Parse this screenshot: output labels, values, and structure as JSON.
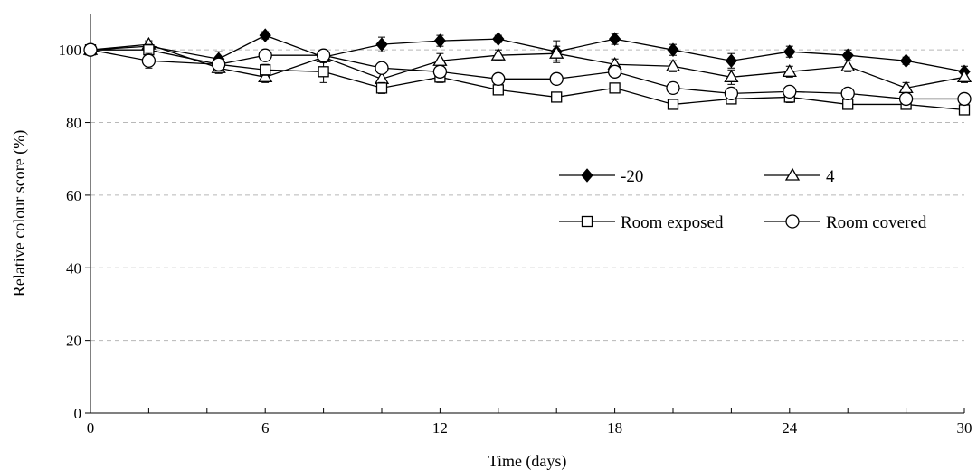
{
  "chart_data": {
    "type": "line",
    "title": "",
    "xlabel": "Time (days)",
    "ylabel": "Relative colour score (%)",
    "xlim": [
      0,
      30
    ],
    "ylim": [
      0,
      110
    ],
    "xticks": [
      0,
      6,
      12,
      18,
      24,
      30
    ],
    "yticks": [
      0,
      20,
      40,
      60,
      80,
      100
    ],
    "grid": "horizontal dashed",
    "legend_placement": "right",
    "x": [
      0,
      2,
      4.4,
      6,
      8,
      10,
      12,
      14,
      16,
      18,
      20,
      22,
      24,
      26,
      28,
      30
    ],
    "series": [
      {
        "name": "-20",
        "marker": "diamond-filled",
        "values": [
          100,
          101,
          97.5,
          104,
          98,
          101.5,
          102.5,
          103,
          99.5,
          103,
          100,
          97,
          99.5,
          98.5,
          97,
          94
        ],
        "errors": [
          0,
          1.5,
          2,
          1,
          1.5,
          2,
          1.5,
          1,
          3,
          1.5,
          1.5,
          2,
          1.5,
          1.5,
          1,
          1.5
        ]
      },
      {
        "name": "4",
        "marker": "triangle-open",
        "values": [
          100,
          101.5,
          95,
          92.5,
          98,
          92,
          97,
          98.5,
          99,
          96,
          95.5,
          92.5,
          94,
          95.5,
          89.5,
          92.5
        ],
        "errors": [
          0,
          1,
          1.5,
          1.5,
          1.5,
          2,
          2,
          1.5,
          2,
          1.5,
          1.5,
          2,
          1.5,
          1.5,
          1.5,
          1.5
        ]
      },
      {
        "name": "Room exposed",
        "marker": "square-open",
        "values": [
          100,
          100,
          96,
          94.5,
          94,
          89.5,
          92.5,
          89,
          87,
          89.5,
          85,
          86.5,
          87,
          85,
          85,
          83.5
        ],
        "errors": [
          0,
          1.5,
          1.5,
          1.5,
          3,
          1.5,
          1.5,
          1,
          1,
          1,
          1,
          1,
          1.5,
          1,
          1,
          1
        ]
      },
      {
        "name": "Room covered",
        "marker": "circle-open",
        "values": [
          100,
          97,
          96,
          98.5,
          98.5,
          95,
          94,
          92,
          92,
          94,
          89.5,
          88,
          88.5,
          88,
          86.5,
          86.5
        ],
        "errors": [
          0,
          2,
          1.5,
          1,
          1.5,
          1.5,
          1.5,
          1,
          1.5,
          1.5,
          1,
          1.5,
          1.5,
          1,
          1,
          1
        ]
      }
    ]
  }
}
